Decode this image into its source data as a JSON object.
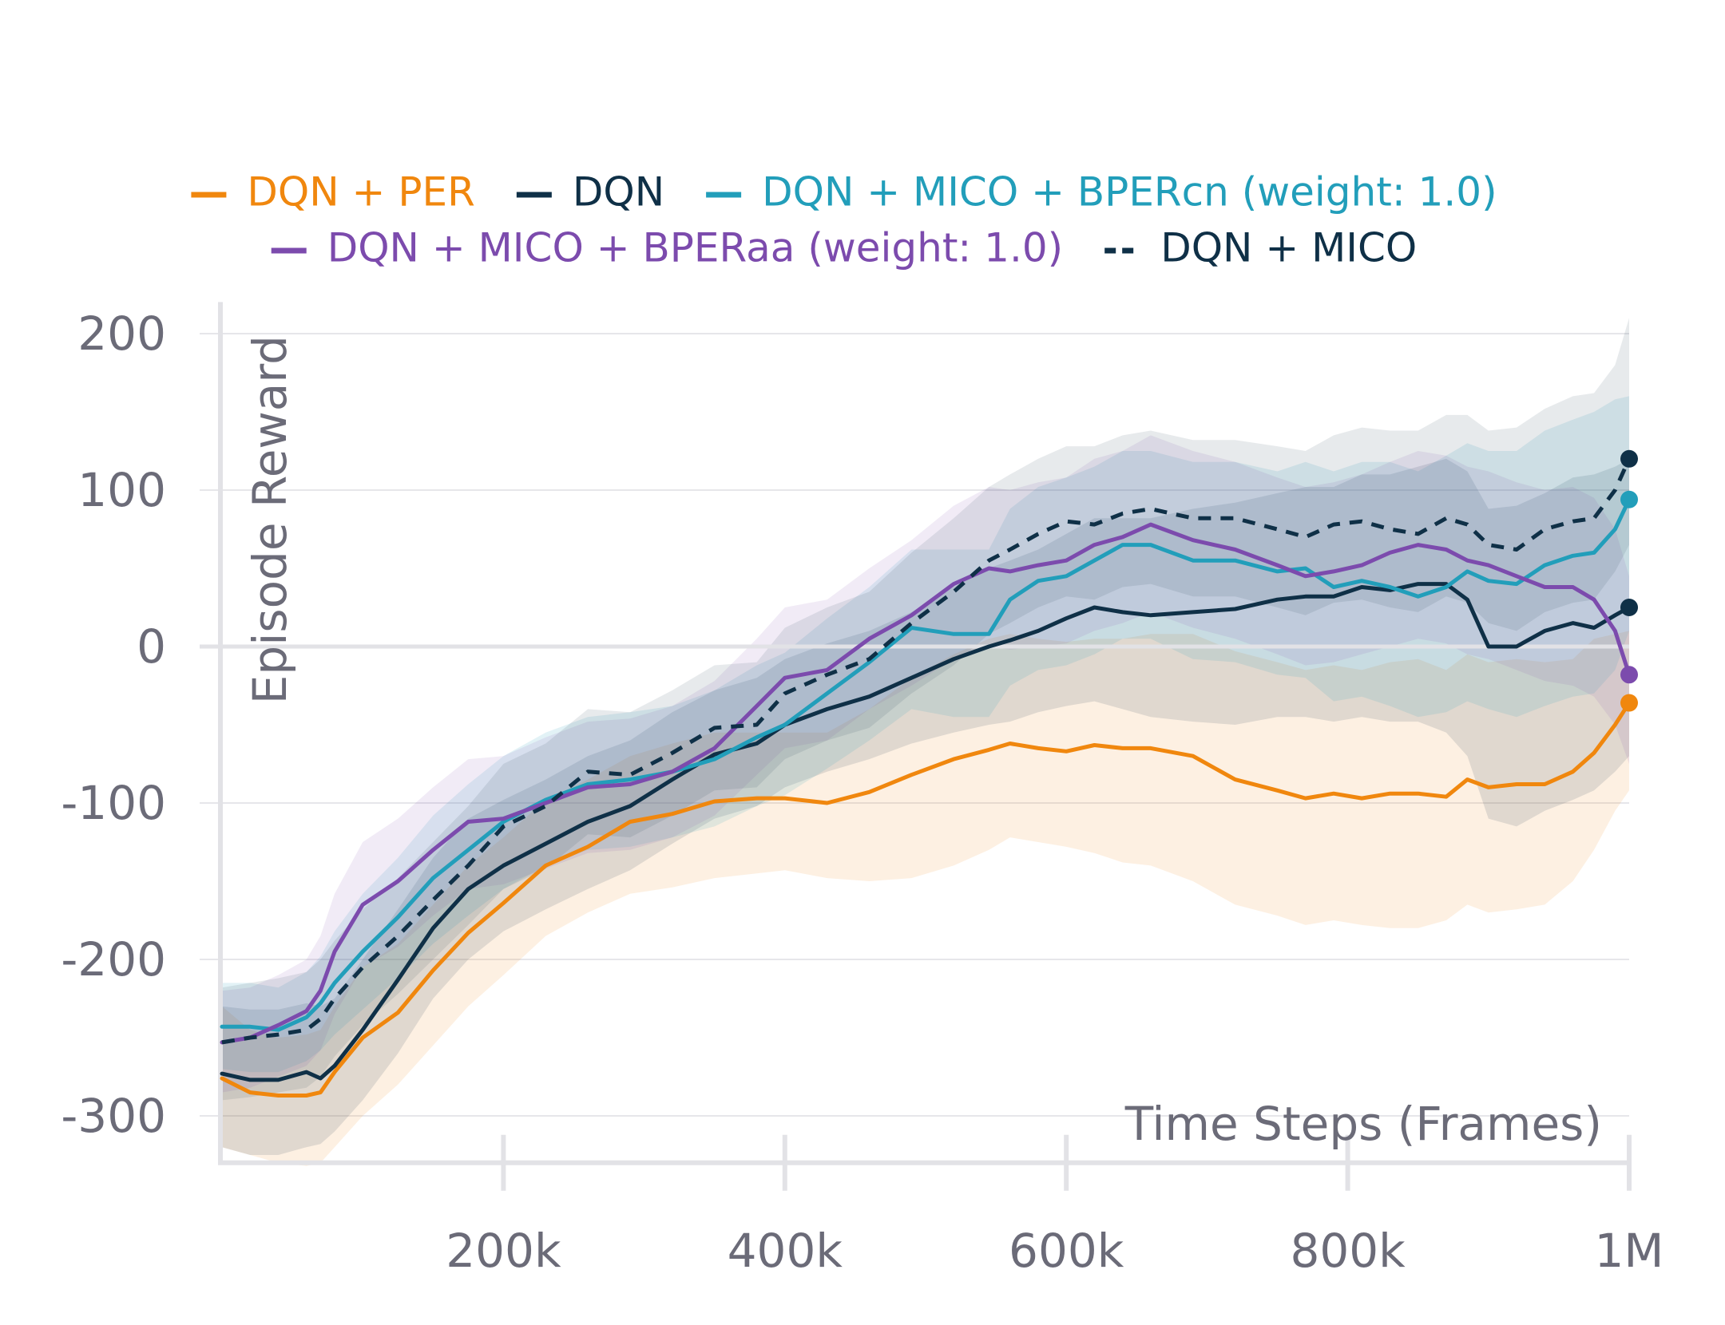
{
  "chart_data": {
    "type": "line",
    "xlabel": "Time Steps (Frames)",
    "ylabel": "Episode Reward",
    "xlim": [
      0,
      1000000
    ],
    "ylim": [
      -330,
      210
    ],
    "x_ticks": [
      {
        "value": 200000,
        "label": "200k"
      },
      {
        "value": 400000,
        "label": "400k"
      },
      {
        "value": 600000,
        "label": "600k"
      },
      {
        "value": 800000,
        "label": "800k"
      },
      {
        "value": 1000000,
        "label": "1M"
      }
    ],
    "y_ticks": [
      {
        "value": 200,
        "label": "200"
      },
      {
        "value": 100,
        "label": "100"
      },
      {
        "value": 0,
        "label": "0"
      },
      {
        "value": -100,
        "label": "-100"
      },
      {
        "value": -200,
        "label": "-200"
      },
      {
        "value": -300,
        "label": "-300"
      }
    ],
    "grid": true,
    "legend_position": "top",
    "series": [
      {
        "name": "DQN + PER",
        "color": "#f0870e",
        "dash": false,
        "band_opacity": 0.12,
        "x": [
          0,
          20000,
          40000,
          60000,
          70000,
          80000,
          100000,
          125000,
          150000,
          175000,
          200000,
          230000,
          260000,
          290000,
          320000,
          350000,
          380000,
          400000,
          430000,
          460000,
          490000,
          520000,
          545000,
          560000,
          580000,
          600000,
          620000,
          640000,
          660000,
          690000,
          720000,
          750000,
          770000,
          790000,
          810000,
          830000,
          850000,
          870000,
          885000,
          900000,
          920000,
          940000,
          960000,
          975000,
          990000,
          1000000
        ],
        "y": [
          -276,
          -285,
          -287,
          -287,
          -285,
          -272,
          -250,
          -234,
          -207,
          -183,
          -164,
          -140,
          -128,
          -112,
          -107,
          -99,
          -97,
          -97,
          -100,
          -93,
          -82,
          -72,
          -66,
          -62,
          -65,
          -67,
          -63,
          -65,
          -65,
          -70,
          -85,
          -92,
          -97,
          -94,
          -97,
          -94,
          -94,
          -96,
          -85,
          -90,
          -88,
          -88,
          -80,
          -68,
          -50,
          -36
        ],
        "lower": [
          -320,
          -325,
          -330,
          -332,
          -330,
          -320,
          -300,
          -280,
          -255,
          -230,
          -210,
          -185,
          -170,
          -158,
          -154,
          -148,
          -145,
          -143,
          -148,
          -150,
          -148,
          -140,
          -130,
          -122,
          -125,
          -128,
          -132,
          -138,
          -140,
          -150,
          -165,
          -172,
          -178,
          -175,
          -178,
          -180,
          -180,
          -175,
          -165,
          -170,
          -168,
          -165,
          -150,
          -130,
          -105,
          -92
        ],
        "upper": [
          -230,
          -245,
          -250,
          -248,
          -245,
          -230,
          -205,
          -190,
          -165,
          -140,
          -122,
          -98,
          -85,
          -70,
          -62,
          -55,
          -55,
          -55,
          -55,
          -40,
          -20,
          -5,
          5,
          8,
          5,
          3,
          5,
          5,
          8,
          8,
          -3,
          -10,
          -15,
          -12,
          -15,
          -10,
          -8,
          -15,
          -5,
          -10,
          -8,
          -10,
          -8,
          5,
          8,
          10
        ]
      },
      {
        "name": "DQN",
        "color": "#0f3047",
        "dash": false,
        "band_opacity": 0.12,
        "x": [
          0,
          20000,
          40000,
          60000,
          70000,
          80000,
          100000,
          125000,
          150000,
          175000,
          200000,
          230000,
          260000,
          290000,
          320000,
          350000,
          380000,
          400000,
          430000,
          460000,
          490000,
          520000,
          545000,
          560000,
          580000,
          600000,
          620000,
          640000,
          660000,
          690000,
          720000,
          750000,
          770000,
          790000,
          810000,
          830000,
          850000,
          870000,
          885000,
          900000,
          920000,
          940000,
          960000,
          975000,
          990000,
          1000000
        ],
        "y": [
          -273,
          -277,
          -277,
          -272,
          -276,
          -268,
          -245,
          -213,
          -180,
          -155,
          -140,
          -126,
          -112,
          -102,
          -85,
          -69,
          -62,
          -50,
          -40,
          -32,
          -20,
          -8,
          0,
          4,
          10,
          18,
          25,
          22,
          20,
          22,
          24,
          30,
          32,
          32,
          38,
          36,
          40,
          40,
          30,
          0,
          0,
          10,
          15,
          12,
          20,
          25
        ],
        "lower": [
          -320,
          -325,
          -325,
          -320,
          -318,
          -310,
          -290,
          -260,
          -225,
          -200,
          -182,
          -168,
          -155,
          -143,
          -126,
          -110,
          -102,
          -90,
          -80,
          -72,
          -62,
          -55,
          -50,
          -48,
          -42,
          -38,
          -35,
          -40,
          -45,
          -48,
          -50,
          -45,
          -45,
          -48,
          -45,
          -48,
          -48,
          -55,
          -70,
          -110,
          -115,
          -105,
          -98,
          -92,
          -80,
          -70
        ],
        "upper": [
          -230,
          -232,
          -232,
          -228,
          -230,
          -225,
          -200,
          -168,
          -135,
          -110,
          -98,
          -85,
          -70,
          -60,
          -42,
          -28,
          -20,
          -8,
          2,
          10,
          22,
          38,
          50,
          55,
          62,
          72,
          82,
          82,
          82,
          88,
          92,
          98,
          102,
          102,
          110,
          110,
          115,
          120,
          112,
          88,
          90,
          98,
          108,
          110,
          115,
          120
        ]
      },
      {
        "name": "DQN + MICO + BPERcn (weight: 1.0)",
        "color": "#229eba",
        "dash": false,
        "band_opacity": 0.13,
        "x": [
          0,
          20000,
          40000,
          60000,
          70000,
          80000,
          100000,
          125000,
          150000,
          175000,
          200000,
          230000,
          260000,
          290000,
          320000,
          350000,
          380000,
          400000,
          430000,
          460000,
          490000,
          520000,
          545000,
          560000,
          580000,
          600000,
          620000,
          640000,
          660000,
          690000,
          720000,
          750000,
          770000,
          790000,
          810000,
          830000,
          850000,
          870000,
          885000,
          900000,
          920000,
          940000,
          960000,
          975000,
          990000,
          1000000
        ],
        "y": [
          -243,
          -243,
          -245,
          -237,
          -228,
          -215,
          -195,
          -173,
          -148,
          -130,
          -112,
          -98,
          -88,
          -85,
          -80,
          -72,
          -58,
          -50,
          -30,
          -10,
          12,
          8,
          8,
          30,
          42,
          45,
          55,
          65,
          65,
          55,
          55,
          48,
          50,
          38,
          42,
          38,
          32,
          38,
          48,
          42,
          40,
          52,
          58,
          60,
          75,
          94
        ],
        "lower": [
          -270,
          -272,
          -272,
          -265,
          -258,
          -248,
          -232,
          -212,
          -190,
          -172,
          -155,
          -140,
          -130,
          -128,
          -122,
          -115,
          -102,
          -95,
          -78,
          -60,
          -40,
          -45,
          -45,
          -25,
          -15,
          -12,
          -5,
          5,
          5,
          -8,
          -10,
          -18,
          -20,
          -35,
          -32,
          -38,
          -45,
          -42,
          -35,
          -40,
          -45,
          -38,
          -32,
          -30,
          -15,
          10
        ],
        "upper": [
          -215,
          -215,
          -218,
          -208,
          -198,
          -182,
          -158,
          -135,
          -108,
          -88,
          -70,
          -55,
          -45,
          -42,
          -38,
          -28,
          -12,
          -4,
          18,
          38,
          62,
          62,
          62,
          88,
          102,
          108,
          115,
          125,
          125,
          118,
          118,
          112,
          118,
          112,
          118,
          118,
          112,
          122,
          130,
          125,
          125,
          138,
          145,
          150,
          158,
          160
        ]
      },
      {
        "name": "DQN + MICO + BPERaa (weight: 1.0)",
        "color": "#7c4bad",
        "dash": false,
        "band_opacity": 0.11,
        "x": [
          0,
          20000,
          40000,
          60000,
          70000,
          80000,
          100000,
          125000,
          150000,
          175000,
          200000,
          230000,
          260000,
          290000,
          320000,
          350000,
          380000,
          400000,
          430000,
          460000,
          490000,
          520000,
          545000,
          560000,
          580000,
          600000,
          620000,
          640000,
          660000,
          690000,
          720000,
          750000,
          770000,
          790000,
          810000,
          830000,
          850000,
          870000,
          885000,
          900000,
          920000,
          940000,
          960000,
          975000,
          990000,
          1000000
        ],
        "y": [
          -253,
          -250,
          -242,
          -233,
          -220,
          -195,
          -165,
          -150,
          -130,
          -112,
          -110,
          -100,
          -90,
          -88,
          -80,
          -65,
          -38,
          -20,
          -15,
          5,
          20,
          40,
          50,
          48,
          52,
          55,
          65,
          70,
          78,
          68,
          62,
          52,
          45,
          48,
          52,
          60,
          65,
          62,
          55,
          52,
          45,
          38,
          38,
          30,
          10,
          -18
        ],
        "lower": [
          -285,
          -282,
          -275,
          -268,
          -258,
          -235,
          -205,
          -192,
          -172,
          -155,
          -152,
          -142,
          -132,
          -130,
          -122,
          -108,
          -82,
          -65,
          -60,
          -40,
          -25,
          -8,
          0,
          -2,
          0,
          2,
          10,
          15,
          22,
          12,
          5,
          -5,
          -12,
          -10,
          -5,
          0,
          5,
          2,
          -5,
          -8,
          -15,
          -22,
          -25,
          -32,
          -50,
          -75
        ],
        "upper": [
          -220,
          -218,
          -210,
          -200,
          -185,
          -158,
          -125,
          -110,
          -90,
          -72,
          -70,
          -58,
          -48,
          -46,
          -38,
          -22,
          5,
          25,
          30,
          50,
          68,
          90,
          102,
          100,
          105,
          108,
          120,
          125,
          135,
          125,
          118,
          108,
          102,
          105,
          110,
          118,
          125,
          122,
          115,
          112,
          105,
          100,
          102,
          95,
          75,
          45
        ]
      },
      {
        "name": "DQN + MICO",
        "color": "#0f3047",
        "dash": true,
        "band_opacity": 0.1,
        "x": [
          0,
          20000,
          40000,
          60000,
          70000,
          80000,
          100000,
          125000,
          150000,
          175000,
          200000,
          230000,
          260000,
          290000,
          320000,
          350000,
          380000,
          400000,
          430000,
          460000,
          490000,
          520000,
          545000,
          560000,
          580000,
          600000,
          620000,
          640000,
          660000,
          690000,
          720000,
          750000,
          770000,
          790000,
          810000,
          830000,
          850000,
          870000,
          885000,
          900000,
          920000,
          940000,
          960000,
          975000,
          990000,
          1000000
        ],
        "y": [
          -253,
          -250,
          -248,
          -245,
          -238,
          -225,
          -205,
          -185,
          -162,
          -140,
          -115,
          -102,
          -80,
          -82,
          -68,
          -52,
          -50,
          -30,
          -18,
          -8,
          15,
          35,
          55,
          62,
          72,
          80,
          78,
          85,
          88,
          82,
          82,
          75,
          70,
          78,
          80,
          75,
          72,
          82,
          78,
          65,
          62,
          75,
          80,
          82,
          100,
          120
        ],
        "lower": [
          -290,
          -288,
          -285,
          -282,
          -275,
          -262,
          -242,
          -222,
          -200,
          -178,
          -155,
          -142,
          -120,
          -122,
          -108,
          -92,
          -90,
          -72,
          -60,
          -52,
          -30,
          -12,
          8,
          15,
          25,
          32,
          30,
          38,
          40,
          32,
          32,
          25,
          20,
          28,
          30,
          25,
          22,
          32,
          28,
          15,
          10,
          22,
          28,
          30,
          48,
          65
        ],
        "upper": [
          -218,
          -215,
          -212,
          -208,
          -200,
          -188,
          -168,
          -148,
          -125,
          -102,
          -75,
          -62,
          -40,
          -42,
          -28,
          -12,
          -10,
          12,
          25,
          35,
          60,
          82,
          102,
          110,
          120,
          128,
          128,
          135,
          138,
          132,
          132,
          128,
          125,
          135,
          140,
          138,
          138,
          148,
          148,
          138,
          140,
          152,
          160,
          162,
          180,
          210
        ]
      }
    ]
  }
}
